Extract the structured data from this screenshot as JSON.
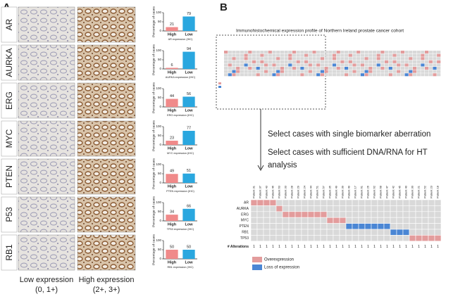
{
  "panel_a": {
    "label": "A",
    "rows": [
      {
        "marker": "AR",
        "chart": {
          "type": "bar",
          "categories": [
            "High",
            "Low"
          ],
          "values": [
            21,
            79
          ],
          "colors": [
            "#f08a8a",
            "#2aa7df"
          ],
          "ylabel": "Percentage of cases",
          "xlabel": "AR expression (IHC)",
          "ylim": [
            0,
            100
          ],
          "yticks": [
            0,
            50,
            100
          ]
        }
      },
      {
        "marker": "AURKA",
        "chart": {
          "type": "bar",
          "categories": [
            "High",
            "Low"
          ],
          "values": [
            6,
            94
          ],
          "colors": [
            "#f08a8a",
            "#2aa7df"
          ],
          "ylabel": "Percentage of cases",
          "xlabel": "AURKA expression (IHC)",
          "ylim": [
            0,
            100
          ],
          "yticks": [
            0,
            50,
            100
          ]
        }
      },
      {
        "marker": "ERG",
        "chart": {
          "type": "bar",
          "categories": [
            "High",
            "Low"
          ],
          "values": [
            44,
            56
          ],
          "colors": [
            "#f08a8a",
            "#2aa7df"
          ],
          "ylabel": "Percentage of cases",
          "xlabel": "ERG expression (IHC)",
          "ylim": [
            0,
            100
          ],
          "yticks": [
            0,
            50,
            100
          ]
        }
      },
      {
        "marker": "MYC",
        "chart": {
          "type": "bar",
          "categories": [
            "High",
            "Low"
          ],
          "values": [
            23,
            77
          ],
          "colors": [
            "#f08a8a",
            "#2aa7df"
          ],
          "ylabel": "Percentage of cases",
          "xlabel": "MYC expression (IHC)",
          "ylim": [
            0,
            100
          ],
          "yticks": [
            0,
            50,
            100
          ]
        }
      },
      {
        "marker": "PTEN",
        "chart": {
          "type": "bar",
          "categories": [
            "High",
            "Low"
          ],
          "values": [
            49,
            51
          ],
          "colors": [
            "#f08a8a",
            "#2aa7df"
          ],
          "ylabel": "Percentage of cases",
          "xlabel": "PTEN expression (IHC)",
          "ylim": [
            0,
            100
          ],
          "yticks": [
            0,
            50,
            100
          ]
        }
      },
      {
        "marker": "P53",
        "chart": {
          "type": "bar",
          "categories": [
            "High",
            "Low"
          ],
          "values": [
            34,
            66
          ],
          "colors": [
            "#f08a8a",
            "#2aa7df"
          ],
          "ylabel": "Percentage of cases",
          "xlabel": "TP53 expression (IHC)",
          "ylim": [
            0,
            100
          ],
          "yticks": [
            0,
            50,
            100
          ]
        }
      },
      {
        "marker": "RB1",
        "chart": {
          "type": "bar",
          "categories": [
            "High",
            "Low"
          ],
          "values": [
            50,
            50
          ],
          "colors": [
            "#f08a8a",
            "#2aa7df"
          ],
          "ylabel": "Percentage of cases",
          "xlabel": "RB1 expression (IHC)",
          "ylim": [
            0,
            100
          ],
          "yticks": [
            0,
            50,
            100
          ]
        }
      }
    ],
    "columns": [
      [
        "Low expression",
        "(0, 1+)"
      ],
      [
        "High expression",
        "(2+, 3+)"
      ]
    ]
  },
  "panel_b": {
    "label": "B",
    "title": "Immunohistochemical expression profile of Northern Ireland prostate cancer cohort",
    "steps": [
      [
        "Select cases with single biomarker aberration"
      ],
      [
        "Select cases with sufficient DNA/RNA for HT",
        "analysis"
      ]
    ],
    "heatmap": {
      "patients": [
        "Patient 31",
        "Patient 37",
        "Patient 43",
        "Patient 46",
        "Patient 63",
        "Patient 33",
        "Patient 28",
        "Patient 29",
        "Patient 24",
        "Patient 44",
        "Patient 51",
        "Patient 57",
        "Patient 35",
        "Patient 49",
        "Patient 39",
        "Patient 49",
        "Patient 17",
        "Patient 61",
        "Patient 26",
        "Patient 62",
        "Patient 68",
        "Patient 47",
        "Patient 42",
        "Patient 45",
        "Patient 40",
        "Patient 30",
        "Patient 21",
        "Patient 52",
        "Patient 23",
        "Patient 18"
      ],
      "rows": [
        {
          "name": "AR",
          "color": "#e39c9c",
          "columns": [
            0,
            1,
            2,
            3
          ]
        },
        {
          "name": "AURKA",
          "color": "#e39c9c",
          "columns": [
            4
          ]
        },
        {
          "name": "ERG",
          "color": "#e39c9c",
          "columns": [
            5,
            6,
            7,
            8,
            9,
            10,
            11
          ]
        },
        {
          "name": "MYC",
          "color": "#e39c9c",
          "columns": [
            12,
            13,
            14
          ]
        },
        {
          "name": "PTEN",
          "color": "#4a86d4",
          "columns": [
            15,
            16,
            17,
            18,
            19,
            20,
            21
          ]
        },
        {
          "name": "RB1",
          "color": "#4a86d4",
          "columns": [
            22,
            23,
            24
          ]
        },
        {
          "name": "TP53",
          "color": "#e39c9c",
          "columns": [
            25,
            26,
            27,
            28,
            29
          ]
        }
      ],
      "alterations_label": "# Alterations",
      "alterations": [
        1,
        1,
        1,
        1,
        1,
        1,
        1,
        1,
        1,
        1,
        1,
        1,
        1,
        1,
        1,
        1,
        1,
        1,
        1,
        1,
        1,
        1,
        1,
        1,
        1,
        1,
        1,
        1,
        1,
        1
      ],
      "legend": [
        {
          "label": "Overexpression",
          "color": "#e39c9c"
        },
        {
          "label": "Loss of expression",
          "color": "#4a86d4"
        }
      ]
    }
  }
}
